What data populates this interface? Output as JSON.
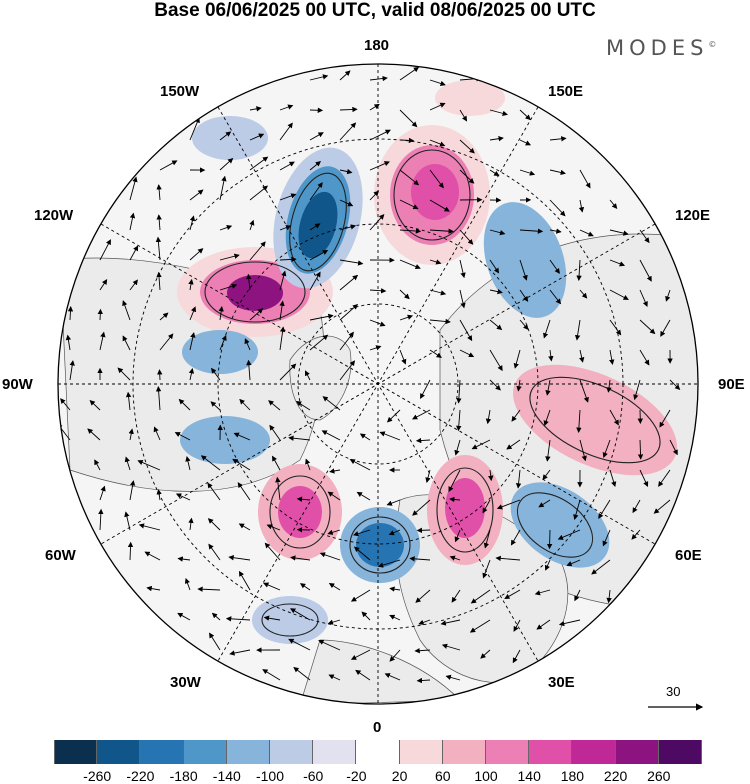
{
  "title": "Base 06/06/2025 00 UTC, valid 08/06/2025 00 UTC",
  "logo": "MODES",
  "logo_mark": "©",
  "longitude_labels": {
    "top": "180",
    "top_left": "150W",
    "top_right": "150E",
    "upper_left": "120W",
    "upper_right": "120E",
    "left": "90W",
    "right": "90E",
    "lower_left": "60W",
    "lower_right": "60E",
    "bottom_left": "30W",
    "bottom_right": "30E",
    "bottom": "0"
  },
  "vector_scale": {
    "label": "30"
  },
  "colorbar": {
    "levels": [
      "-260",
      "-220",
      "-180",
      "-140",
      "-100",
      "-60",
      "-20",
      "20",
      "60",
      "100",
      "140",
      "180",
      "220",
      "260"
    ],
    "colors": [
      "#0b2f4f",
      "#10568a",
      "#2774b3",
      "#4f97c9",
      "#86b4da",
      "#bccbe6",
      "#e1e1ef",
      "#ffffff",
      "#f7d9db",
      "#f2b0c1",
      "#ec7fb3",
      "#e04fa8",
      "#c02797",
      "#8c1380",
      "#4e0a62"
    ]
  },
  "map": {
    "projection": "north polar stereographic",
    "land_color": "#ebebeb",
    "anomaly_centers": [
      {
        "sign": "positive",
        "level": "260",
        "lon_sector": "130W"
      },
      {
        "sign": "negative",
        "level": "-220",
        "lon_sector": "165W"
      },
      {
        "sign": "positive",
        "level": "180",
        "lon_sector": "160E"
      },
      {
        "sign": "negative",
        "level": "-140",
        "lon_sector": "110E"
      },
      {
        "sign": "positive",
        "level": "140",
        "lon_sector": "80E"
      },
      {
        "sign": "negative",
        "level": "-140",
        "lon_sector": "55E"
      },
      {
        "sign": "positive",
        "level": "180",
        "lon_sector": "25E"
      },
      {
        "sign": "negative",
        "level": "-180",
        "lon_sector": "0"
      },
      {
        "sign": "positive",
        "level": "140",
        "lon_sector": "40W"
      },
      {
        "sign": "negative",
        "level": "-140",
        "lon_sector": "80W"
      },
      {
        "sign": "negative",
        "level": "-140",
        "lon_sector": "100W"
      }
    ]
  }
}
